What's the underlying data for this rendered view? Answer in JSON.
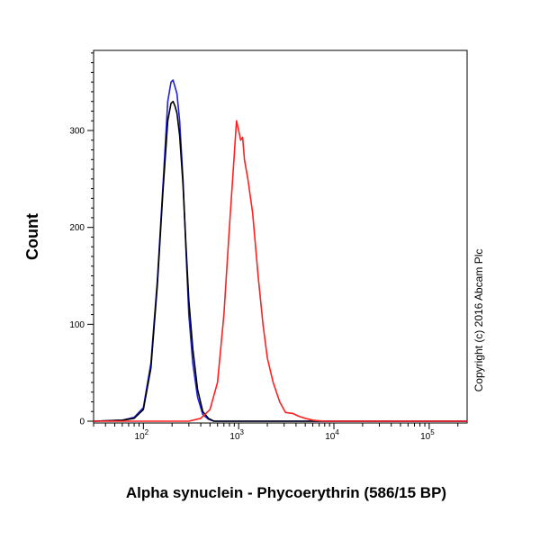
{
  "chart_data": {
    "type": "line",
    "title": "",
    "xlabel": "Alpha synuclein - Phycoerythrin (586/15 BP)",
    "ylabel": "Count",
    "x_scale": "log",
    "xlim": [
      30,
      250000
    ],
    "ylim": [
      0,
      380
    ],
    "x_ticks": [
      {
        "value": 100,
        "base": "10",
        "exp": "2"
      },
      {
        "value": 1000,
        "base": "10",
        "exp": "3"
      },
      {
        "value": 10000,
        "base": "10",
        "exp": "4"
      },
      {
        "value": 100000,
        "base": "10",
        "exp": "5"
      }
    ],
    "y_ticks": [
      {
        "value": 0,
        "label": "0"
      },
      {
        "value": 100,
        "label": "100"
      },
      {
        "value": 200,
        "label": "200"
      },
      {
        "value": 300,
        "label": "300"
      }
    ],
    "grid": false,
    "annotation": "Copyright (c) 2016 Abcam Plc",
    "series": [
      {
        "color": "#2020e0",
        "x": [
          30,
          60,
          80,
          100,
          120,
          140,
          160,
          180,
          195,
          205,
          215,
          225,
          240,
          260,
          280,
          300,
          330,
          370,
          420,
          480,
          550,
          650,
          800,
          1500,
          10000,
          250000
        ],
        "y": [
          0,
          1,
          4,
          14,
          60,
          145,
          240,
          330,
          350,
          352,
          345,
          338,
          310,
          250,
          175,
          110,
          60,
          25,
          7,
          2,
          0,
          0,
          0,
          0,
          0,
          0
        ]
      },
      {
        "color": "#000000",
        "x": [
          30,
          60,
          80,
          100,
          120,
          140,
          160,
          180,
          195,
          205,
          215,
          225,
          240,
          260,
          280,
          300,
          330,
          370,
          420,
          480,
          550,
          650,
          800,
          1500,
          10000,
          250000
        ],
        "y": [
          0,
          1,
          3,
          12,
          55,
          140,
          235,
          310,
          328,
          330,
          325,
          318,
          295,
          245,
          180,
          125,
          75,
          33,
          10,
          3,
          0,
          0,
          0,
          0,
          0,
          0
        ]
      },
      {
        "color": "#ff2020",
        "x": [
          30,
          200,
          300,
          400,
          500,
          600,
          700,
          800,
          900,
          950,
          1000,
          1050,
          1100,
          1150,
          1250,
          1400,
          1600,
          1800,
          2000,
          2300,
          2700,
          3100,
          3700,
          4300,
          5000,
          6000,
          8000,
          15000,
          250000
        ],
        "y": [
          0,
          0,
          0,
          3,
          12,
          40,
          110,
          200,
          275,
          310,
          300,
          290,
          293,
          270,
          250,
          215,
          150,
          100,
          65,
          40,
          20,
          9,
          8,
          5,
          3,
          1,
          0,
          0,
          0
        ]
      }
    ]
  }
}
